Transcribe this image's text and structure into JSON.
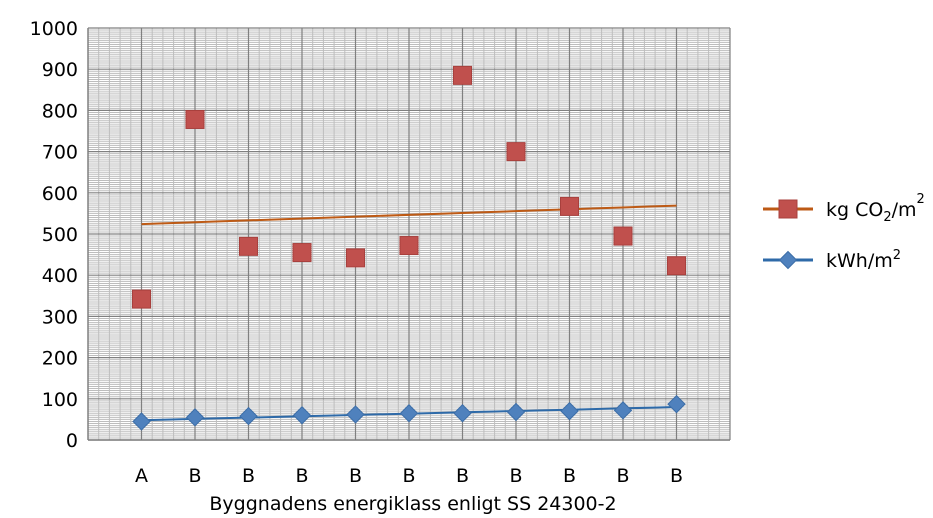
{
  "chart_data": {
    "type": "scatter",
    "categories": [
      "A",
      "B",
      "B",
      "B",
      "B",
      "B",
      "B",
      "B",
      "B",
      "B",
      "B"
    ],
    "xlabel": "Byggnadens energiklass enligt SS 24300-2",
    "ylabel": "",
    "ylim": [
      0,
      1000
    ],
    "yticks": [
      0,
      100,
      200,
      300,
      400,
      500,
      600,
      700,
      800,
      900,
      1000
    ],
    "grid": "on",
    "legend_position": "right",
    "series": [
      {
        "name": "kg CO2/m2",
        "legend_parts": [
          "kg CO",
          "2",
          "/m",
          "2"
        ],
        "marker": "square",
        "color": "#c0504d",
        "values": [
          342,
          778,
          470,
          455,
          442,
          472,
          885,
          700,
          567,
          495,
          423
        ],
        "trendline": {
          "type": "linear",
          "color": "#bd5a15",
          "start": 524,
          "end": 569
        }
      },
      {
        "name": "kWh/m2",
        "legend_parts": [
          "kWh/m",
          "2"
        ],
        "marker": "diamond",
        "color": "#4f81bd",
        "values": [
          45,
          55,
          58,
          60,
          62,
          65,
          65,
          68,
          70,
          72,
          87
        ],
        "trendline": {
          "type": "linear",
          "color": "#2e6aa8",
          "start": 48,
          "end": 80
        }
      }
    ]
  }
}
